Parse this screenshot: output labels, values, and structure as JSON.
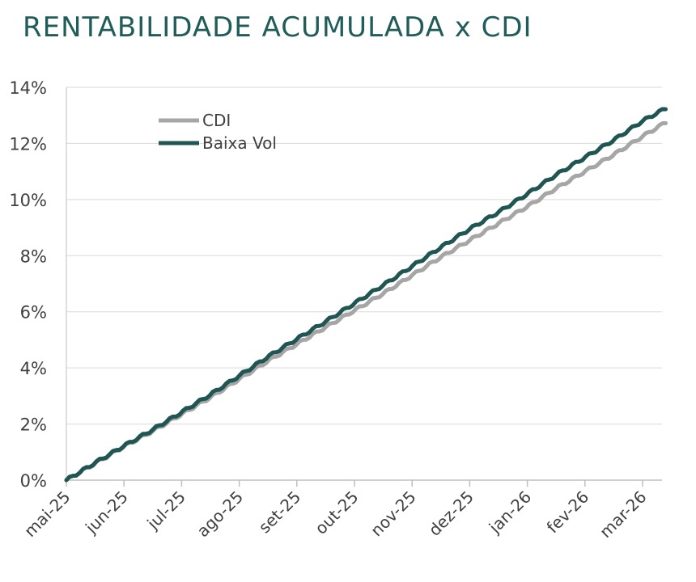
{
  "chart_data": {
    "type": "line",
    "title": "RENTABILIDADE ACUMULADA x CDI",
    "xlabel": "",
    "ylabel": "",
    "ylim": [
      0,
      14
    ],
    "y_ticks": [
      0,
      2,
      4,
      6,
      8,
      10,
      12,
      14
    ],
    "y_tick_labels": [
      "0%",
      "2%",
      "4%",
      "6%",
      "8%",
      "10%",
      "12%",
      "14%"
    ],
    "x_tick_labels": [
      "mai-25",
      "jun-25",
      "jul-25",
      "ago-25",
      "set-25",
      "out-25",
      "nov-25",
      "dez-25",
      "jan-26",
      "fev-26",
      "mar-26"
    ],
    "x_tick_months": [
      0,
      1,
      2,
      3,
      4,
      5,
      6,
      7,
      8,
      9,
      10
    ],
    "xlim_months": [
      0,
      10.4
    ],
    "grid": true,
    "legend_position": "top-left",
    "series": [
      {
        "name": "CDI",
        "color": "#a6a6a6",
        "x_months": [
          0,
          0.5,
          1,
          1.5,
          2,
          2.5,
          3,
          3.5,
          4,
          4.5,
          5,
          5.5,
          6,
          6.5,
          7,
          7.5,
          8,
          8.5,
          9,
          9.5,
          10,
          10.4
        ],
        "values": [
          0,
          0.6,
          1.2,
          1.75,
          2.35,
          2.95,
          3.6,
          4.25,
          4.85,
          5.45,
          6.05,
          6.65,
          7.3,
          7.95,
          8.55,
          9.15,
          9.75,
          10.4,
          11.0,
          11.6,
          12.25,
          12.75
        ]
      },
      {
        "name": "Baixa Vol",
        "color": "#1f5552",
        "x_months": [
          0,
          0.5,
          1,
          1.5,
          2,
          2.5,
          3,
          3.5,
          4,
          4.5,
          5,
          5.5,
          6,
          6.5,
          7,
          7.5,
          8,
          8.5,
          9,
          9.5,
          10,
          10.4
        ],
        "values": [
          0,
          0.62,
          1.22,
          1.8,
          2.42,
          3.05,
          3.72,
          4.4,
          5.03,
          5.65,
          6.3,
          6.95,
          7.62,
          8.3,
          8.95,
          9.55,
          10.2,
          10.88,
          11.5,
          12.12,
          12.8,
          13.25
        ]
      }
    ]
  }
}
